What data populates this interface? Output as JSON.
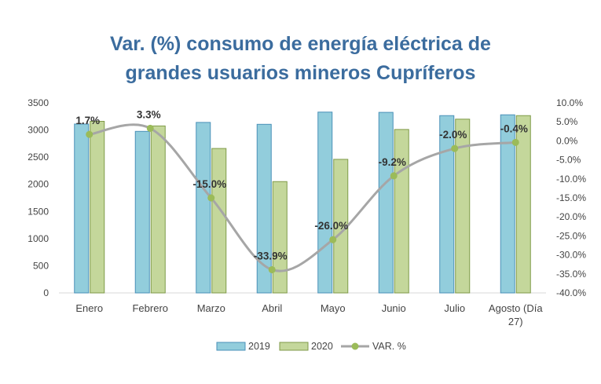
{
  "chart_data": {
    "type": "bar",
    "title_lines": [
      "Var. (%) consumo de energía eléctrica de",
      "grandes usuarios mineros Cupríferos"
    ],
    "categories": [
      [
        "Enero"
      ],
      [
        "Febrero"
      ],
      [
        "Marzo"
      ],
      [
        "Abril"
      ],
      [
        "Mayo"
      ],
      [
        "Junio"
      ],
      [
        "Julio"
      ],
      [
        "Agosto (Día",
        "27)"
      ]
    ],
    "series": [
      {
        "name": "2019",
        "kind": "bar",
        "axis": "left",
        "values": [
          3110,
          2975,
          3140,
          3105,
          3330,
          3325,
          3265,
          3280
        ]
      },
      {
        "name": "2020",
        "kind": "bar",
        "axis": "left",
        "values": [
          3160,
          3075,
          2660,
          2050,
          2460,
          3010,
          3200,
          3265
        ]
      },
      {
        "name": "VAR. %",
        "kind": "line",
        "axis": "right",
        "values": [
          1.7,
          3.3,
          -15.0,
          -33.9,
          -26.0,
          -9.2,
          -2.0,
          -0.4
        ],
        "labels": [
          "1.7%",
          "3.3%",
          "-15.0%",
          "-33.9%",
          "-26.0%",
          "-9.2%",
          "-2.0%",
          "-0.4%"
        ]
      }
    ],
    "y_left": {
      "min": 0,
      "max": 3500,
      "ticks": [
        "0",
        "500",
        "1000",
        "1500",
        "2000",
        "2500",
        "3000",
        "3500"
      ]
    },
    "y_right": {
      "min": -40,
      "max": 10,
      "ticks": [
        "10.0%",
        "5.0%",
        "0.0%",
        "-5.0%",
        "-10.0%",
        "-15.0%",
        "-20.0%",
        "-25.0%",
        "-30.0%",
        "-35.0%",
        "-40.0%"
      ]
    },
    "grid": false,
    "legend_position": "bottom",
    "colors": {
      "bar2019": "#92cddc",
      "bar2019_edge": "#4a90b8",
      "bar2020": "#c4d79b",
      "bar2020_edge": "#7f9a48",
      "line": "#a6a6a6",
      "marker": "#9bbb59",
      "title": "#3b6c9e"
    }
  }
}
